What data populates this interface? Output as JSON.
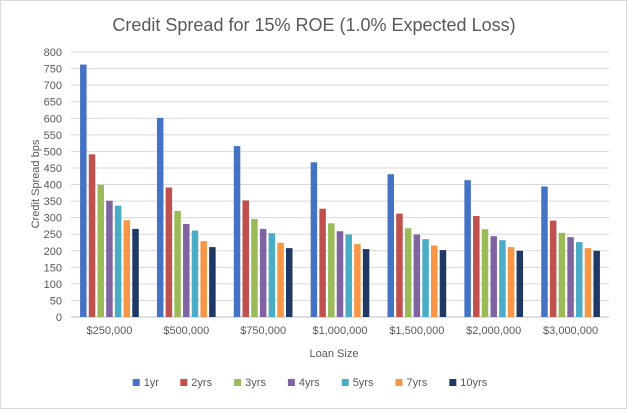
{
  "chart_data": {
    "type": "bar",
    "title": "Credit Spread for 15% ROE (1.0% Expected Loss)",
    "xlabel": "Loan Size",
    "ylabel": "Credit Spread bps",
    "ylim": [
      0,
      800
    ],
    "yticks": [
      0,
      50,
      100,
      150,
      200,
      250,
      300,
      350,
      400,
      450,
      500,
      550,
      600,
      650,
      700,
      750,
      800
    ],
    "grid": true,
    "legend_position": "bottom",
    "categories": [
      "$250,000",
      "$500,000",
      "$750,000",
      "$1,000,000",
      "$1,500,000",
      "$2,000,000",
      "$3,000,000"
    ],
    "series": [
      {
        "name": "1yr",
        "color": "#4472c4",
        "values": [
          762,
          601,
          516,
          467,
          431,
          413,
          394
        ]
      },
      {
        "name": "2yrs",
        "color": "#c0504d",
        "values": [
          491,
          391,
          352,
          327,
          312,
          305,
          291
        ]
      },
      {
        "name": "3yrs",
        "color": "#9bbb59",
        "values": [
          399,
          320,
          296,
          283,
          268,
          265,
          254
        ]
      },
      {
        "name": "4yrs",
        "color": "#8064a2",
        "values": [
          351,
          281,
          266,
          259,
          249,
          244,
          241
        ]
      },
      {
        "name": "5yrs",
        "color": "#4bacc6",
        "values": [
          336,
          261,
          253,
          249,
          235,
          232,
          226
        ]
      },
      {
        "name": "7yrs",
        "color": "#f79646",
        "values": [
          292,
          229,
          224,
          220,
          216,
          211,
          208
        ]
      },
      {
        "name": "10yrs",
        "color": "#1f3864",
        "values": [
          266,
          211,
          208,
          205,
          202,
          200,
          200
        ]
      }
    ]
  }
}
